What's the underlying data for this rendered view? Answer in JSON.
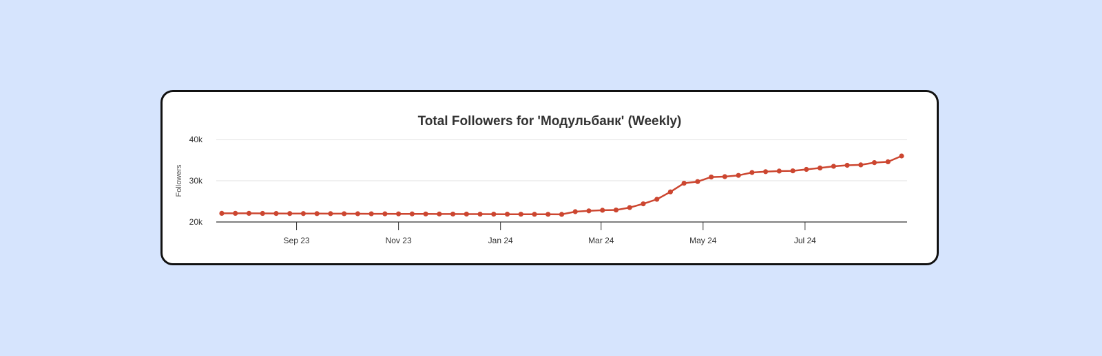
{
  "chart_data": {
    "type": "line",
    "title": "Total Followers for 'Модульбанк' (Weekly)",
    "ylabel": "Followers",
    "xlabel": "",
    "ylim": [
      20000,
      40000
    ],
    "y_ticks": [
      {
        "value": 20000,
        "label": "20k"
      },
      {
        "value": 30000,
        "label": "30k"
      },
      {
        "value": 40000,
        "label": "40k"
      }
    ],
    "x_ticks": [
      {
        "index": 5.5,
        "label": "Sep 23"
      },
      {
        "index": 13.0,
        "label": "Nov 23"
      },
      {
        "index": 20.5,
        "label": "Jan 24"
      },
      {
        "index": 27.9,
        "label": "Mar 24"
      },
      {
        "index": 35.4,
        "label": "May 24"
      },
      {
        "index": 42.9,
        "label": "Jul 24"
      }
    ],
    "grid": true,
    "line_color": "#cc4630",
    "series": [
      {
        "values": [
          22100,
          22100,
          22100,
          22080,
          22060,
          22050,
          22040,
          22030,
          22020,
          22010,
          22000,
          21990,
          21980,
          21970,
          21960,
          21950,
          21940,
          21930,
          21920,
          21910,
          21900,
          21890,
          21880,
          21870,
          21860,
          21850,
          22500,
          22700,
          22850,
          22900,
          23500,
          24400,
          25500,
          27300,
          29400,
          29800,
          30900,
          31000,
          31300,
          32000,
          32200,
          32350,
          32400,
          32750,
          33100,
          33500,
          33750,
          33850,
          34400,
          34600,
          36000
        ]
      }
    ]
  }
}
